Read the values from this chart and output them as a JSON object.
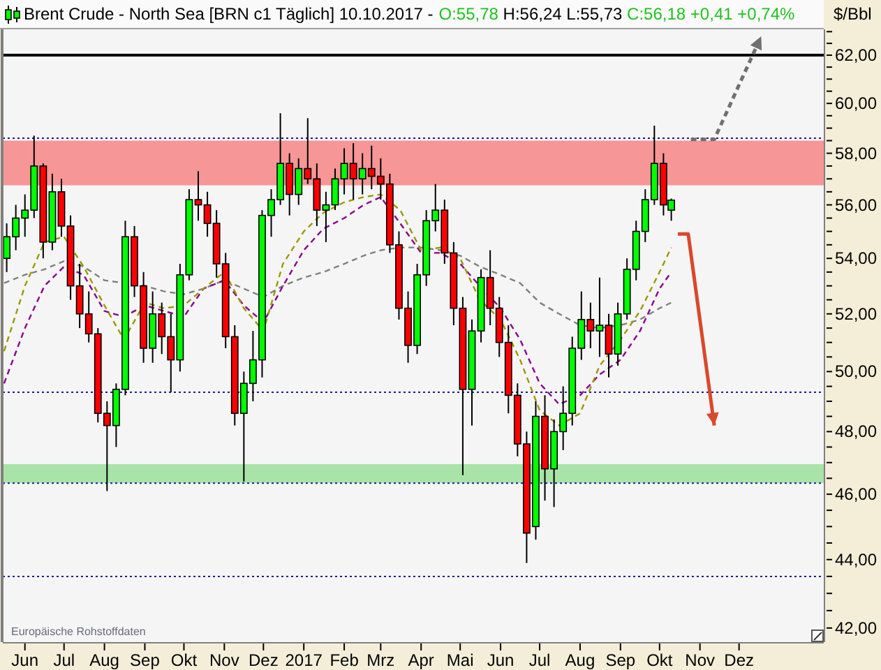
{
  "chart_data": {
    "type": "candlestick",
    "title": "Brent Crude - North Sea [BRN c1 Täglich] 10.10.2017 -",
    "subtitle": "O:55,78 H:56,24 L:55,73 C:56,18 +0,41 +0,74%",
    "ylabel": "$/Bbl",
    "annotations": [
      "Europäische Rohstoffdaten"
    ],
    "log": "y",
    "xlim": [
      "2016-05-15",
      "2018-02-04"
    ],
    "xticks": [
      {
        "value": "2016-06-01",
        "label": "Jun"
      },
      {
        "value": "2016-07-01",
        "label": "Jul"
      },
      {
        "value": "2016-08-01",
        "label": "Aug"
      },
      {
        "value": "2016-09-01",
        "label": "Sep"
      },
      {
        "value": "2016-10-01",
        "label": "Okt"
      },
      {
        "value": "2016-11-01",
        "label": "Nov"
      },
      {
        "value": "2016-12-01",
        "label": "Dez"
      },
      {
        "value": "2017-01-01",
        "label": "2017"
      },
      {
        "value": "2017-02-01",
        "label": "Feb"
      },
      {
        "value": "2017-03-01",
        "label": "Mrz"
      },
      {
        "value": "2017-04-01",
        "label": "Apr"
      },
      {
        "value": "2017-05-01",
        "label": "Mai"
      },
      {
        "value": "2017-06-01",
        "label": "Jun"
      },
      {
        "value": "2017-07-01",
        "label": "Jul"
      },
      {
        "value": "2017-08-01",
        "label": "Aug"
      },
      {
        "value": "2017-09-01",
        "label": "Sep"
      },
      {
        "value": "2017-10-01",
        "label": "Okt"
      },
      {
        "value": "2017-11-01",
        "label": "Nov"
      },
      {
        "value": "2017-12-01",
        "label": "Dez"
      }
    ],
    "ylim": [
      41.6,
      63.1
    ],
    "yticks": [
      {
        "value": 42,
        "label": "42,00"
      },
      {
        "value": 42.5,
        "label": null
      },
      {
        "value": 43,
        "label": null
      },
      {
        "value": 43.5,
        "label": null
      },
      {
        "value": 44,
        "label": "44,00"
      },
      {
        "value": 44.5,
        "label": null
      },
      {
        "value": 45,
        "label": null
      },
      {
        "value": 45.5,
        "label": null
      },
      {
        "value": 46,
        "label": "46,00"
      },
      {
        "value": 46.5,
        "label": null
      },
      {
        "value": 47,
        "label": null
      },
      {
        "value": 47.5,
        "label": null
      },
      {
        "value": 48,
        "label": "48,00"
      },
      {
        "value": 48.5,
        "label": null
      },
      {
        "value": 49,
        "label": null
      },
      {
        "value": 49.5,
        "label": null
      },
      {
        "value": 50,
        "label": "50,00"
      },
      {
        "value": 50.5,
        "label": null
      },
      {
        "value": 51,
        "label": null
      },
      {
        "value": 51.5,
        "label": null
      },
      {
        "value": 52,
        "label": "52,00"
      },
      {
        "value": 52.5,
        "label": null
      },
      {
        "value": 53,
        "label": null
      },
      {
        "value": 53.5,
        "label": null
      },
      {
        "value": 54,
        "label": "54,00"
      },
      {
        "value": 54.5,
        "label": null
      },
      {
        "value": 55,
        "label": null
      },
      {
        "value": 55.5,
        "label": null
      },
      {
        "value": 56,
        "label": "56,00"
      },
      {
        "value": 56.5,
        "label": null
      },
      {
        "value": 57,
        "label": null
      },
      {
        "value": 57.5,
        "label": null
      },
      {
        "value": 58,
        "label": "58,00"
      },
      {
        "value": 58.5,
        "label": null
      },
      {
        "value": 59,
        "label": null
      },
      {
        "value": 59.5,
        "label": null
      },
      {
        "value": 60,
        "label": "60,00"
      },
      {
        "value": 60.5,
        "label": null
      },
      {
        "value": 61,
        "label": null
      },
      {
        "value": 61.5,
        "label": null
      },
      {
        "value": 62,
        "label": "62,00"
      },
      {
        "value": 62.5,
        "label": null
      },
      {
        "value": 63,
        "label": null
      }
    ],
    "bands": [
      {
        "axis": "y",
        "from": 56.75,
        "to": 58.5,
        "color": "#f79696"
      },
      {
        "axis": "y",
        "from": 46.35,
        "to": 46.95,
        "color": "#a8e4a8"
      }
    ],
    "ref_lines": [
      {
        "axis": "y",
        "value": 62,
        "color": "#000000",
        "line_style": "solid"
      },
      {
        "axis": "y",
        "value": 58.6,
        "color": "#1a1a9a",
        "line_style": "dotted"
      },
      {
        "axis": "y",
        "value": 49.3,
        "color": "#1a1a9a",
        "line_style": "dotted"
      },
      {
        "axis": "y",
        "value": 46.35,
        "color": "#1a1a9a",
        "line_style": "dotted"
      },
      {
        "axis": "y",
        "value": 43.5,
        "color": "#1a1a9a",
        "line_style": "dotted"
      }
    ],
    "series": [
      {
        "type": "line",
        "color": "#808080",
        "line_style": "dashed",
        "x": [
          "2016-05-16",
          "2016-06-01",
          "2016-06-16",
          "2016-07-01",
          "2016-07-16",
          "2016-08-01",
          "2016-08-16",
          "2016-09-01",
          "2016-09-16",
          "2016-10-01",
          "2016-10-16",
          "2016-11-01",
          "2016-11-16",
          "2016-12-01",
          "2016-12-16",
          "2017-01-01",
          "2017-01-16",
          "2017-02-01",
          "2017-02-16",
          "2017-03-01",
          "2017-03-16",
          "2017-04-01",
          "2017-04-16",
          "2017-05-01",
          "2017-05-16",
          "2017-06-01",
          "2017-06-16",
          "2017-07-01",
          "2017-07-16",
          "2017-08-01",
          "2017-08-16",
          "2017-09-01",
          "2017-09-16",
          "2017-10-01",
          "2017-10-10"
        ],
        "values": [
          53.1,
          53.4,
          53.6,
          53.9,
          53.7,
          53.2,
          53.1,
          53.0,
          52.8,
          52.7,
          52.9,
          53.2,
          52.9,
          52.6,
          53.0,
          53.3,
          53.5,
          53.8,
          54.1,
          54.3,
          54.4,
          54.4,
          54.3,
          54.1,
          53.7,
          53.4,
          53.1,
          52.4,
          52.0,
          51.6,
          51.5,
          51.6,
          51.8,
          52.2,
          52.4
        ]
      },
      {
        "type": "line",
        "color": "#8b008b",
        "line_style": "dashed",
        "x": [
          "2016-05-16",
          "2016-06-01",
          "2016-06-16",
          "2016-07-01",
          "2016-07-16",
          "2016-08-01",
          "2016-08-16",
          "2016-09-01",
          "2016-09-16",
          "2016-10-01",
          "2016-10-16",
          "2016-11-01",
          "2016-11-16",
          "2016-12-01",
          "2016-12-16",
          "2017-01-01",
          "2017-01-16",
          "2017-02-01",
          "2017-02-16",
          "2017-03-01",
          "2017-03-16",
          "2017-04-01",
          "2017-04-16",
          "2017-05-01",
          "2017-05-16",
          "2017-06-01",
          "2017-06-16",
          "2017-07-01",
          "2017-07-16",
          "2017-08-01",
          "2017-08-16",
          "2017-09-01",
          "2017-09-16",
          "2017-10-01",
          "2017-10-10"
        ],
        "values": [
          49.6,
          51.5,
          53.0,
          53.7,
          53.4,
          52.1,
          51.9,
          52.3,
          52.1,
          51.9,
          52.9,
          53.2,
          52.3,
          51.7,
          53.0,
          54.3,
          55.1,
          55.5,
          56.0,
          56.3,
          55.3,
          54.2,
          54.2,
          53.8,
          53.0,
          52.2,
          51.1,
          49.6,
          48.9,
          49.2,
          49.9,
          50.4,
          51.4,
          52.9,
          53.5
        ]
      },
      {
        "type": "line",
        "color": "#999900",
        "line_style": "dashed",
        "x": [
          "2016-05-16",
          "2016-06-01",
          "2016-06-16",
          "2016-07-01",
          "2016-07-16",
          "2016-08-01",
          "2016-08-16",
          "2016-09-01",
          "2016-09-16",
          "2016-10-01",
          "2016-10-16",
          "2016-11-01",
          "2016-11-16",
          "2016-12-01",
          "2016-12-16",
          "2017-01-01",
          "2017-01-16",
          "2017-02-01",
          "2017-02-16",
          "2017-03-01",
          "2017-03-16",
          "2017-04-01",
          "2017-04-16",
          "2017-05-01",
          "2017-05-16",
          "2017-06-01",
          "2017-06-16",
          "2017-07-01",
          "2017-07-16",
          "2017-08-01",
          "2017-08-16",
          "2017-09-01",
          "2017-09-16",
          "2017-10-01",
          "2017-10-10"
        ],
        "values": [
          50.7,
          53.0,
          54.6,
          54.8,
          53.7,
          52.3,
          51.1,
          52.4,
          52.2,
          52.3,
          52.9,
          53.5,
          52.2,
          51.4,
          53.8,
          55.0,
          55.7,
          56.1,
          56.3,
          56.4,
          55.8,
          54.3,
          54.4,
          54.0,
          52.5,
          51.8,
          50.4,
          48.7,
          48.2,
          48.6,
          50.2,
          51.1,
          52.1,
          53.5,
          54.4
        ]
      },
      {
        "x": [
          "2016-05-18",
          "2016-05-25",
          "2016-06-01",
          "2016-06-08",
          "2016-06-15",
          "2016-06-22",
          "2016-06-29",
          "2016-07-06",
          "2016-07-13",
          "2016-07-20",
          "2016-07-27",
          "2016-08-03",
          "2016-08-10",
          "2016-08-17",
          "2016-08-24",
          "2016-08-31",
          "2016-09-07",
          "2016-09-14",
          "2016-09-21",
          "2016-09-28",
          "2016-10-05",
          "2016-10-12",
          "2016-10-19",
          "2016-10-26",
          "2016-11-02",
          "2016-11-09",
          "2016-11-16",
          "2016-11-23",
          "2016-11-30",
          "2016-12-07",
          "2016-12-14",
          "2016-12-21",
          "2016-12-28",
          "2017-01-04",
          "2017-01-11",
          "2017-01-18",
          "2017-01-25",
          "2017-02-01",
          "2017-02-08",
          "2017-02-15",
          "2017-02-22",
          "2017-03-01",
          "2017-03-08",
          "2017-03-15",
          "2017-03-22",
          "2017-03-29",
          "2017-04-05",
          "2017-04-12",
          "2017-04-19",
          "2017-04-26",
          "2017-05-03",
          "2017-05-10",
          "2017-05-17",
          "2017-05-24",
          "2017-05-31",
          "2017-06-07",
          "2017-06-14",
          "2017-06-21",
          "2017-06-28",
          "2017-07-05",
          "2017-07-12",
          "2017-07-19",
          "2017-07-26",
          "2017-08-02",
          "2017-08-09",
          "2017-08-16",
          "2017-08-23",
          "2017-08-30",
          "2017-09-06",
          "2017-09-13",
          "2017-09-20",
          "2017-09-27",
          "2017-10-04",
          "2017-10-10"
        ],
        "ohlc": [
          [
            54.0,
            55.3,
            53.5,
            54.8
          ],
          [
            54.8,
            56.0,
            54.3,
            55.5
          ],
          [
            55.5,
            56.4,
            54.8,
            55.8
          ],
          [
            55.8,
            58.7,
            55.5,
            57.5
          ],
          [
            57.5,
            57.6,
            54.0,
            54.6
          ],
          [
            54.6,
            57.2,
            54.3,
            56.5
          ],
          [
            56.5,
            57.0,
            54.8,
            55.2
          ],
          [
            55.2,
            55.6,
            52.5,
            53.0
          ],
          [
            53.0,
            53.8,
            51.5,
            52.0
          ],
          [
            52.0,
            52.8,
            51.0,
            51.3
          ],
          [
            51.3,
            51.5,
            48.3,
            48.6
          ],
          [
            48.6,
            49.0,
            46.1,
            48.2
          ],
          [
            48.2,
            49.6,
            47.5,
            49.4
          ],
          [
            49.4,
            55.4,
            49.2,
            54.8
          ],
          [
            54.8,
            55.2,
            52.6,
            53.0
          ],
          [
            53.0,
            53.5,
            50.3,
            50.8
          ],
          [
            50.8,
            52.8,
            50.3,
            52.0
          ],
          [
            52.0,
            52.4,
            50.6,
            51.2
          ],
          [
            51.2,
            52.0,
            49.3,
            50.4
          ],
          [
            50.4,
            53.8,
            50.0,
            53.4
          ],
          [
            53.4,
            56.6,
            53.2,
            56.2
          ],
          [
            56.2,
            57.3,
            55.4,
            56.0
          ],
          [
            56.0,
            56.5,
            54.8,
            55.3
          ],
          [
            55.3,
            55.8,
            53.3,
            53.8
          ],
          [
            53.8,
            54.2,
            50.8,
            51.2
          ],
          [
            51.2,
            51.6,
            48.2,
            48.6
          ],
          [
            48.6,
            50.0,
            46.4,
            49.6
          ],
          [
            49.6,
            51.4,
            49.0,
            50.4
          ],
          [
            50.4,
            55.8,
            49.8,
            55.6
          ],
          [
            55.6,
            56.6,
            54.8,
            56.2
          ],
          [
            56.2,
            59.6,
            56.0,
            57.6
          ],
          [
            57.6,
            58.0,
            55.6,
            56.4
          ],
          [
            56.4,
            57.8,
            56.0,
            57.4
          ],
          [
            57.4,
            59.4,
            56.8,
            57.0
          ],
          [
            57.0,
            57.6,
            55.2,
            55.8
          ],
          [
            55.8,
            56.5,
            54.6,
            56.0
          ],
          [
            56.0,
            57.4,
            55.8,
            57.0
          ],
          [
            57.0,
            58.2,
            56.4,
            57.6
          ],
          [
            57.6,
            58.4,
            56.2,
            57.0
          ],
          [
            57.0,
            58.0,
            56.4,
            57.4
          ],
          [
            57.4,
            58.3,
            56.6,
            57.1
          ],
          [
            57.1,
            57.8,
            56.2,
            56.8
          ],
          [
            56.8,
            57.2,
            54.2,
            54.5
          ],
          [
            54.5,
            55.0,
            51.8,
            52.2
          ],
          [
            52.2,
            52.8,
            50.3,
            50.9
          ],
          [
            50.9,
            53.8,
            50.6,
            53.4
          ],
          [
            53.4,
            55.8,
            53.0,
            55.4
          ],
          [
            55.4,
            56.8,
            55.0,
            55.8
          ],
          [
            55.8,
            56.2,
            53.8,
            54.2
          ],
          [
            54.2,
            54.6,
            51.6,
            52.2
          ],
          [
            52.2,
            52.6,
            46.6,
            49.4
          ],
          [
            49.4,
            51.8,
            48.2,
            51.4
          ],
          [
            51.4,
            53.6,
            51.0,
            53.3
          ],
          [
            53.3,
            54.3,
            51.6,
            52.2
          ],
          [
            52.2,
            52.6,
            50.5,
            51.0
          ],
          [
            51.0,
            51.6,
            48.6,
            49.2
          ],
          [
            49.2,
            49.6,
            47.2,
            47.6
          ],
          [
            47.6,
            48.0,
            43.9,
            44.8
          ],
          [
            45.0,
            49.0,
            44.6,
            48.5
          ],
          [
            48.5,
            49.2,
            45.8,
            46.8
          ],
          [
            46.8,
            48.4,
            45.6,
            48.0
          ],
          [
            48.0,
            49.5,
            47.4,
            48.6
          ],
          [
            48.6,
            51.2,
            48.2,
            50.8
          ],
          [
            50.8,
            52.8,
            50.4,
            51.8
          ],
          [
            51.8,
            52.4,
            50.8,
            51.4
          ],
          [
            51.4,
            53.3,
            50.5,
            51.6
          ],
          [
            51.6,
            52.0,
            49.8,
            50.6
          ],
          [
            50.6,
            52.4,
            50.2,
            52.0
          ],
          [
            52.0,
            54.0,
            51.8,
            53.6
          ],
          [
            53.6,
            55.4,
            53.2,
            55.0
          ],
          [
            55.0,
            56.6,
            54.6,
            56.2
          ],
          [
            56.2,
            59.1,
            56.0,
            57.6
          ],
          [
            57.6,
            58.0,
            55.6,
            56.0
          ],
          [
            55.8,
            56.24,
            55.4,
            56.18
          ]
        ],
        "colors": [
          "#00ff00",
          "#00ff00",
          "#00ff00",
          "#00ff00",
          "#ff0000",
          "#00ff00",
          "#ff0000",
          "#ff0000",
          "#ff0000",
          "#ff0000",
          "#ff0000",
          "#ff0000",
          "#00ff00",
          "#00ff00",
          "#ff0000",
          "#ff0000",
          "#00ff00",
          "#ff0000",
          "#ff0000",
          "#00ff00",
          "#00ff00",
          "#ff0000",
          "#ff0000",
          "#ff0000",
          "#ff0000",
          "#ff0000",
          "#00ff00",
          "#00ff00",
          "#00ff00",
          "#00ff00",
          "#00ff00",
          "#ff0000",
          "#00ff00",
          "#ff0000",
          "#ff0000",
          "#00ff00",
          "#00ff00",
          "#00ff00",
          "#ff0000",
          "#00ff00",
          "#ff0000",
          "#ff0000",
          "#ff0000",
          "#ff0000",
          "#ff0000",
          "#00ff00",
          "#00ff00",
          "#00ff00",
          "#ff0000",
          "#ff0000",
          "#ff0000",
          "#00ff00",
          "#00ff00",
          "#ff0000",
          "#ff0000",
          "#ff0000",
          "#ff0000",
          "#ff0000",
          "#00ff00",
          "#ff0000",
          "#00ff00",
          "#00ff00",
          "#00ff00",
          "#00ff00",
          "#ff0000",
          "#00ff00",
          "#ff0000",
          "#00ff00",
          "#00ff00",
          "#00ff00",
          "#00ff00",
          "#00ff00",
          "#ff0000",
          "#00ff00"
        ]
      },
      {
        "type": "line",
        "color": "#707070",
        "line_style": "dashed",
        "x": [
          "2017-10-25",
          "2017-11-12",
          "2017-12-18"
        ],
        "values": [
          58.55,
          58.55,
          62.8
        ]
      },
      {
        "type": "line",
        "color": "#d9482b",
        "line_style": "solid",
        "x": [
          "2017-10-15",
          "2017-10-23",
          "2017-11-12"
        ],
        "values": [
          54.9,
          54.9,
          48.2
        ]
      }
    ]
  }
}
